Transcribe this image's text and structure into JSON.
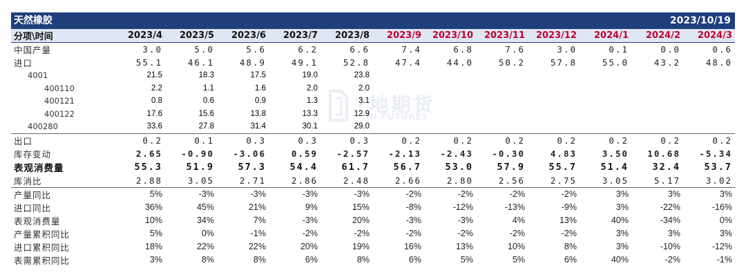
{
  "title": "天然橡胶",
  "date": "2023/10/19",
  "watermark": {
    "cn": "?地期货",
    "en": "?NI FUTURES"
  },
  "header": {
    "label": "分项\\时间",
    "periods": [
      "2023/4",
      "2023/5",
      "2023/6",
      "2023/7",
      "2023/8",
      "2023/9",
      "2023/10",
      "2023/11",
      "2023/12",
      "2024/1",
      "2024/2",
      "2024/3"
    ],
    "forecast_from_index": 5
  },
  "rows": [
    {
      "label": "中国产量",
      "style": "num",
      "values": [
        "3.0",
        "5.0",
        "5.6",
        "6.2",
        "6.6",
        "7.4",
        "6.8",
        "7.6",
        "3.0",
        "0.1",
        "0.0",
        "0.6"
      ]
    },
    {
      "label": "进口",
      "style": "num",
      "values": [
        "55.1",
        "46.1",
        "48.9",
        "49.1",
        "52.8",
        "47.4",
        "44.0",
        "50.2",
        "57.8",
        "55.0",
        "43.2",
        "48.0"
      ]
    },
    {
      "label": "4001",
      "style": "sub",
      "indent": 1,
      "values": [
        "21.5",
        "18.3",
        "17.5",
        "19.0",
        "23.8",
        "",
        "",
        "",
        "",
        "",
        "",
        ""
      ]
    },
    {
      "label": "400110",
      "style": "sub",
      "indent": 2,
      "values": [
        "2.2",
        "1.1",
        "1.6",
        "2.0",
        "2.0",
        "",
        "",
        "",
        "",
        "",
        "",
        ""
      ]
    },
    {
      "label": "400121",
      "style": "sub",
      "indent": 2,
      "values": [
        "0.8",
        "0.6",
        "0.9",
        "1.3",
        "3.1",
        "",
        "",
        "",
        "",
        "",
        "",
        ""
      ]
    },
    {
      "label": "400122",
      "style": "sub",
      "indent": 2,
      "values": [
        "17.6",
        "15.6",
        "13.8",
        "13.3",
        "12.9",
        "",
        "",
        "",
        "",
        "",
        "",
        ""
      ]
    },
    {
      "label": "400280",
      "style": "sub",
      "indent": 1,
      "values": [
        "33.6",
        "27.8",
        "31.4",
        "30.1",
        "29.0",
        "",
        "",
        "",
        "",
        "",
        "",
        ""
      ]
    },
    {
      "label": "出口",
      "style": "num",
      "line": true,
      "values": [
        "0.2",
        "0.1",
        "0.3",
        "0.3",
        "0.3",
        "0.2",
        "0.2",
        "0.2",
        "0.2",
        "0.2",
        "0.2",
        "0.2"
      ]
    },
    {
      "label": "库存变动",
      "style": "num",
      "signed": true,
      "values": [
        "2.65",
        "-0.90",
        "-3.06",
        "0.59",
        "-2.57",
        "-2.13",
        "-2.43",
        "-0.30",
        "4.83",
        "3.50",
        "10.68",
        "-5.34"
      ]
    },
    {
      "label": "表观消费量",
      "style": "num",
      "bold": true,
      "values": [
        "55.3",
        "51.9",
        "57.3",
        "54.4",
        "61.7",
        "56.7",
        "53.0",
        "57.9",
        "55.7",
        "51.4",
        "32.4",
        "53.7"
      ]
    },
    {
      "label": "库消比",
      "style": "num",
      "values": [
        "2.88",
        "3.05",
        "2.71",
        "2.86",
        "2.48",
        "2.66",
        "2.80",
        "2.56",
        "2.75",
        "3.05",
        "5.17",
        "3.02"
      ]
    },
    {
      "label": "产量同比",
      "style": "pct",
      "line": true,
      "values": [
        "5%",
        "-3%",
        "-3%",
        "-3%",
        "-3%",
        "-2%",
        "-2%",
        "-2%",
        "-2%",
        "3%",
        "3%",
        "3%"
      ]
    },
    {
      "label": "进口同比",
      "style": "pct",
      "values": [
        "36%",
        "45%",
        "21%",
        "9%",
        "15%",
        "-8%",
        "-12%",
        "-13%",
        "-9%",
        "3%",
        "-22%",
        "-16%"
      ]
    },
    {
      "label": "表观消费量",
      "style": "pct",
      "values": [
        "10%",
        "34%",
        "7%",
        "-3%",
        "20%",
        "-3%",
        "-3%",
        "4%",
        "13%",
        "40%",
        "-34%",
        "0%"
      ]
    },
    {
      "label": "产量累积同比",
      "style": "pct",
      "values": [
        "5%",
        "0%",
        "-1%",
        "-2%",
        "-2%",
        "-2%",
        "-2%",
        "-2%",
        "-2%",
        "3%",
        "3%",
        "3%"
      ]
    },
    {
      "label": "进口累积同比",
      "style": "pct",
      "values": [
        "18%",
        "22%",
        "22%",
        "20%",
        "19%",
        "16%",
        "13%",
        "10%",
        "8%",
        "3%",
        "-10%",
        "-12%"
      ]
    },
    {
      "label": "表需累积同比",
      "style": "pct",
      "values": [
        "3%",
        "8%",
        "8%",
        "6%",
        "8%",
        "6%",
        "5%",
        "5%",
        "6%",
        "40%",
        "-2%",
        "-1%"
      ]
    }
  ],
  "colors": {
    "header_bar": "#1f3e7c",
    "forecast": "#c0002f",
    "positive": "#1d9a3a",
    "negative": "#e0102d"
  }
}
